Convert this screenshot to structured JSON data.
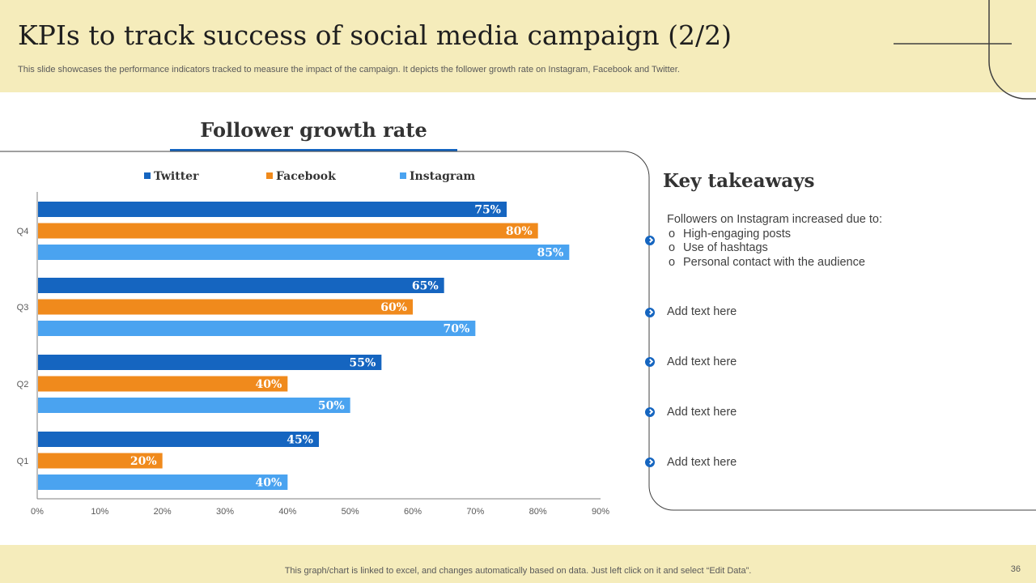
{
  "header": {
    "title": "KPIs to track success of social media campaign (2/2)",
    "subtitle": "This slide showcases the performance indicators tracked to measure the impact of the campaign. It depicts the follower growth rate on Instagram, Facebook and Twitter."
  },
  "colors": {
    "band": "#f5ecbb",
    "twitter": "#1565c0",
    "facebook": "#f08a1c",
    "instagram": "#4aa3f0",
    "accent": "#1565c0"
  },
  "chart_data": {
    "type": "bar",
    "orientation": "horizontal",
    "title": "Follower growth rate",
    "categories": [
      "Q4",
      "Q3",
      "Q2",
      "Q1"
    ],
    "series": [
      {
        "name": "Twitter",
        "values": [
          75,
          65,
          55,
          45
        ],
        "labels": [
          "75%",
          "65%",
          "55%",
          "45%"
        ]
      },
      {
        "name": "Facebook",
        "values": [
          80,
          60,
          40,
          20
        ],
        "labels": [
          "80%",
          "60%",
          "40%",
          "20%"
        ]
      },
      {
        "name": "Instagram",
        "values": [
          85,
          70,
          50,
          40
        ],
        "labels": [
          "85%",
          "70%",
          "50%",
          "40%"
        ]
      }
    ],
    "x_ticks": [
      "0%",
      "10%",
      "20%",
      "30%",
      "40%",
      "50%",
      "60%",
      "70%",
      "80%",
      "90%"
    ],
    "xlim": [
      0,
      90
    ],
    "legend_position": "top",
    "grid": false
  },
  "takeaways": {
    "title": "Key takeaways",
    "first": {
      "intro": "Followers on Instagram increased due to:",
      "bullets": [
        "High-engaging posts",
        "Use of hashtags",
        "Personal contact with the audience"
      ]
    },
    "items": [
      "Add text here",
      "Add text here",
      "Add text here",
      "Add text here"
    ]
  },
  "footer": {
    "note": "This graph/chart is linked to excel,  and changes automatically based on data. Just left click on it and select “Edit Data”.",
    "page_number": "36"
  }
}
